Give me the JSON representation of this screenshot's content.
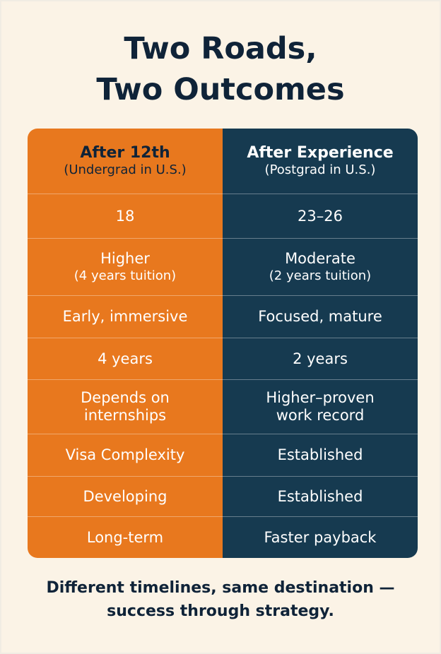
{
  "title": [
    "Two Roads,",
    "Two Outcomes"
  ],
  "table": {
    "header": [
      {
        "lines": [
          "After 12th"
        ],
        "note": "(Undergrad in U.S.)"
      },
      {
        "lines": [
          "After Experience"
        ],
        "note": "(Postgrad in U.S.)"
      }
    ],
    "rows": [
      [
        {
          "lines": [
            "18"
          ]
        },
        {
          "lines": [
            "23–26"
          ]
        }
      ],
      [
        {
          "lines": [
            "Higher"
          ],
          "note": "(4 years tuition)"
        },
        {
          "lines": [
            "Moderate"
          ],
          "note": "(2 years tuition)"
        }
      ],
      [
        {
          "lines": [
            "Early, immersive"
          ]
        },
        {
          "lines": [
            "Focused, mature"
          ]
        }
      ],
      [
        {
          "lines": [
            "4 years"
          ]
        },
        {
          "lines": [
            "2 years"
          ]
        }
      ],
      [
        {
          "lines": [
            "Depends on",
            "internships"
          ]
        },
        {
          "lines": [
            "Higher–proven",
            "work record"
          ]
        }
      ],
      [
        {
          "lines": [
            "Visa Complexity"
          ]
        },
        {
          "lines": [
            "Established"
          ]
        }
      ],
      [
        {
          "lines": [
            "Developing"
          ]
        },
        {
          "lines": [
            "Established"
          ]
        }
      ],
      [
        {
          "lines": [
            "Long-term"
          ]
        },
        {
          "lines": [
            "Faster payback"
          ]
        }
      ]
    ]
  },
  "footer": [
    "Different timelines, same destination —",
    "success through strategy."
  ]
}
